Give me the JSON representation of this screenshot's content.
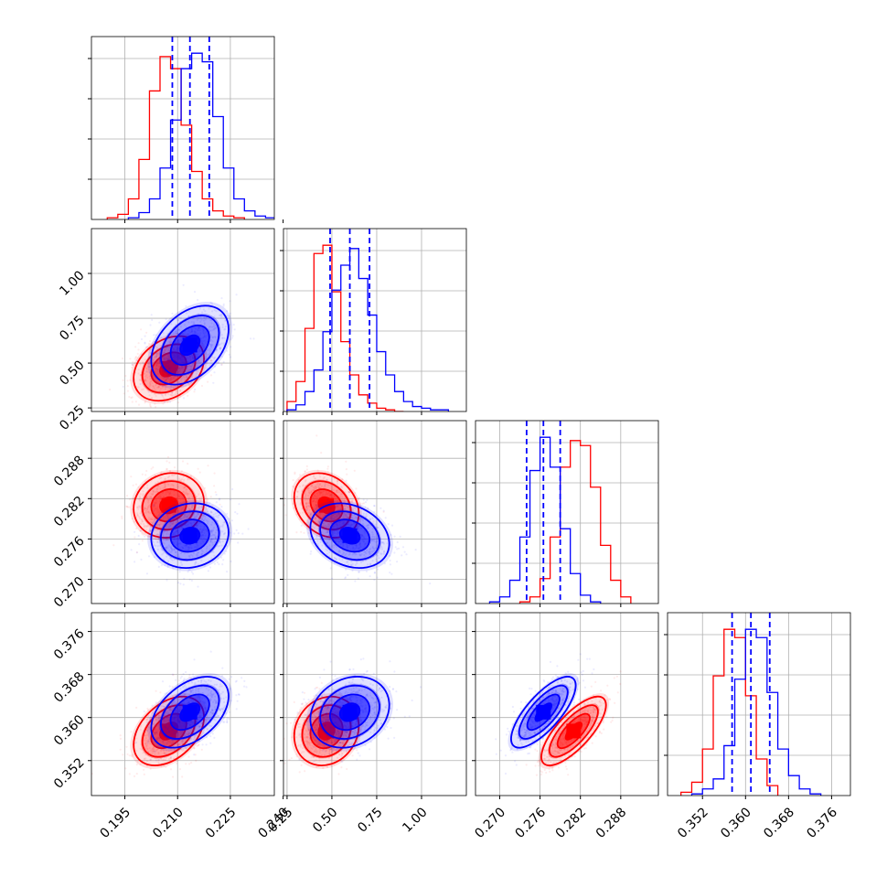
{
  "chart_data": {
    "type": "corner",
    "grid": true,
    "colors": {
      "series_red": "#ff0000",
      "series_blue": "#0000ff",
      "quantile_line": "#0000ff"
    },
    "parameters": [
      {
        "ticks": [
          0.195,
          0.21,
          0.225,
          0.24
        ],
        "tick_labels": [
          "0.195",
          "0.210",
          "0.225",
          "0.240"
        ],
        "range": [
          0.1855,
          0.2375
        ]
      },
      {
        "ticks": [
          0.25,
          0.5,
          0.75,
          1.0
        ],
        "tick_labels": [
          "0.25",
          "0.50",
          "0.75",
          "1.00"
        ],
        "range": [
          0.23,
          1.25
        ]
      },
      {
        "ticks": [
          0.27,
          0.276,
          0.282,
          0.288
        ],
        "tick_labels": [
          "0.270",
          "0.276",
          "0.282",
          "0.288"
        ],
        "range": [
          0.2664,
          0.2936
        ]
      },
      {
        "ticks": [
          0.352,
          0.36,
          0.368,
          0.376
        ],
        "tick_labels": [
          "0.352",
          "0.360",
          "0.368",
          "0.376"
        ],
        "range": [
          0.3455,
          0.3795
        ]
      }
    ],
    "series": [
      {
        "name": "",
        "color": "#ff0000",
        "means": [
          0.2075,
          0.47,
          0.281,
          0.3575
        ],
        "sds": [
          0.005,
          0.09,
          0.0024,
          0.0032
        ],
        "correlations": [
          [
            1.0,
            0.3,
            0.1,
            0.4
          ],
          [
            0.3,
            1.0,
            -0.25,
            0.15
          ],
          [
            0.1,
            -0.25,
            1.0,
            0.75
          ],
          [
            0.4,
            0.15,
            0.75,
            1.0
          ]
        ],
        "histograms": [
          {
            "edges": [
              0.19,
              0.193,
              0.196,
              0.199,
              0.202,
              0.205,
              0.208,
              0.211,
              0.214,
              0.217,
              0.22,
              0.223,
              0.226,
              0.229
            ],
            "counts": [
              1,
              3,
              12,
              35,
              75,
              95,
              88,
              55,
              28,
              12,
              5,
              2,
              1
            ]
          },
          {
            "edges": [
              0.25,
              0.3,
              0.35,
              0.4,
              0.45,
              0.5,
              0.55,
              0.6,
              0.65,
              0.7,
              0.75,
              0.8,
              0.85,
              0.9
            ],
            "counts": [
              6,
              18,
              50,
              95,
              100,
              72,
              42,
              22,
              10,
              5,
              2,
              1,
              0
            ]
          },
          {
            "edges": [
              0.273,
              0.2745,
              0.276,
              0.2775,
              0.279,
              0.2805,
              0.282,
              0.2835,
              0.285,
              0.2865,
              0.288,
              0.2895
            ],
            "counts": [
              1,
              4,
              15,
              40,
              82,
              98,
              95,
              70,
              35,
              14,
              4
            ]
          },
          {
            "edges": [
              0.348,
              0.35,
              0.352,
              0.354,
              0.356,
              0.358,
              0.36,
              0.362,
              0.364,
              0.366
            ],
            "counts": [
              2,
              8,
              28,
              72,
              100,
              95,
              60,
              22,
              6
            ]
          }
        ]
      },
      {
        "name": "",
        "color": "#0000ff",
        "means": [
          0.2135,
          0.6,
          0.2765,
          0.361
        ],
        "sds": [
          0.0055,
          0.11,
          0.0024,
          0.0033
        ],
        "correlations": [
          [
            1.0,
            0.4,
            0.1,
            0.45
          ],
          [
            0.4,
            1.0,
            -0.25,
            0.2
          ],
          [
            0.1,
            -0.25,
            1.0,
            0.75
          ],
          [
            0.45,
            0.2,
            0.75,
            1.0
          ]
        ],
        "quantiles": [
          [
            0.2085,
            0.2135,
            0.219
          ],
          [
            0.49,
            0.6,
            0.71
          ],
          [
            0.274,
            0.2765,
            0.279
          ],
          [
            0.3575,
            0.361,
            0.3645
          ]
        ],
        "histograms": [
          {
            "edges": [
              0.196,
              0.199,
              0.202,
              0.205,
              0.208,
              0.211,
              0.214,
              0.217,
              0.22,
              0.223,
              0.226,
              0.229,
              0.232,
              0.235,
              0.238
            ],
            "counts": [
              1,
              4,
              12,
              30,
              58,
              88,
              97,
              92,
              60,
              30,
              12,
              5,
              2,
              1
            ]
          },
          {
            "edges": [
              0.25,
              0.3,
              0.35,
              0.4,
              0.45,
              0.5,
              0.55,
              0.6,
              0.65,
              0.7,
              0.75,
              0.8,
              0.85,
              0.9,
              0.95,
              1.0,
              1.05,
              1.1,
              1.15
            ],
            "counts": [
              1,
              4,
              12,
              25,
              48,
              73,
              88,
              98,
              80,
              58,
              36,
              22,
              12,
              6,
              3,
              2,
              1,
              1
            ]
          },
          {
            "edges": [
              0.2685,
              0.27,
              0.2715,
              0.273,
              0.2745,
              0.276,
              0.2775,
              0.279,
              0.2805,
              0.282,
              0.2835,
              0.285
            ],
            "counts": [
              1,
              4,
              14,
              40,
              80,
              100,
              82,
              45,
              18,
              5,
              1
            ]
          },
          {
            "edges": [
              0.35,
              0.352,
              0.354,
              0.356,
              0.358,
              0.36,
              0.362,
              0.364,
              0.366,
              0.368,
              0.37,
              0.372,
              0.374
            ],
            "counts": [
              1,
              4,
              10,
              30,
              70,
              100,
              95,
              62,
              28,
              12,
              4,
              1
            ]
          }
        ]
      }
    ]
  }
}
